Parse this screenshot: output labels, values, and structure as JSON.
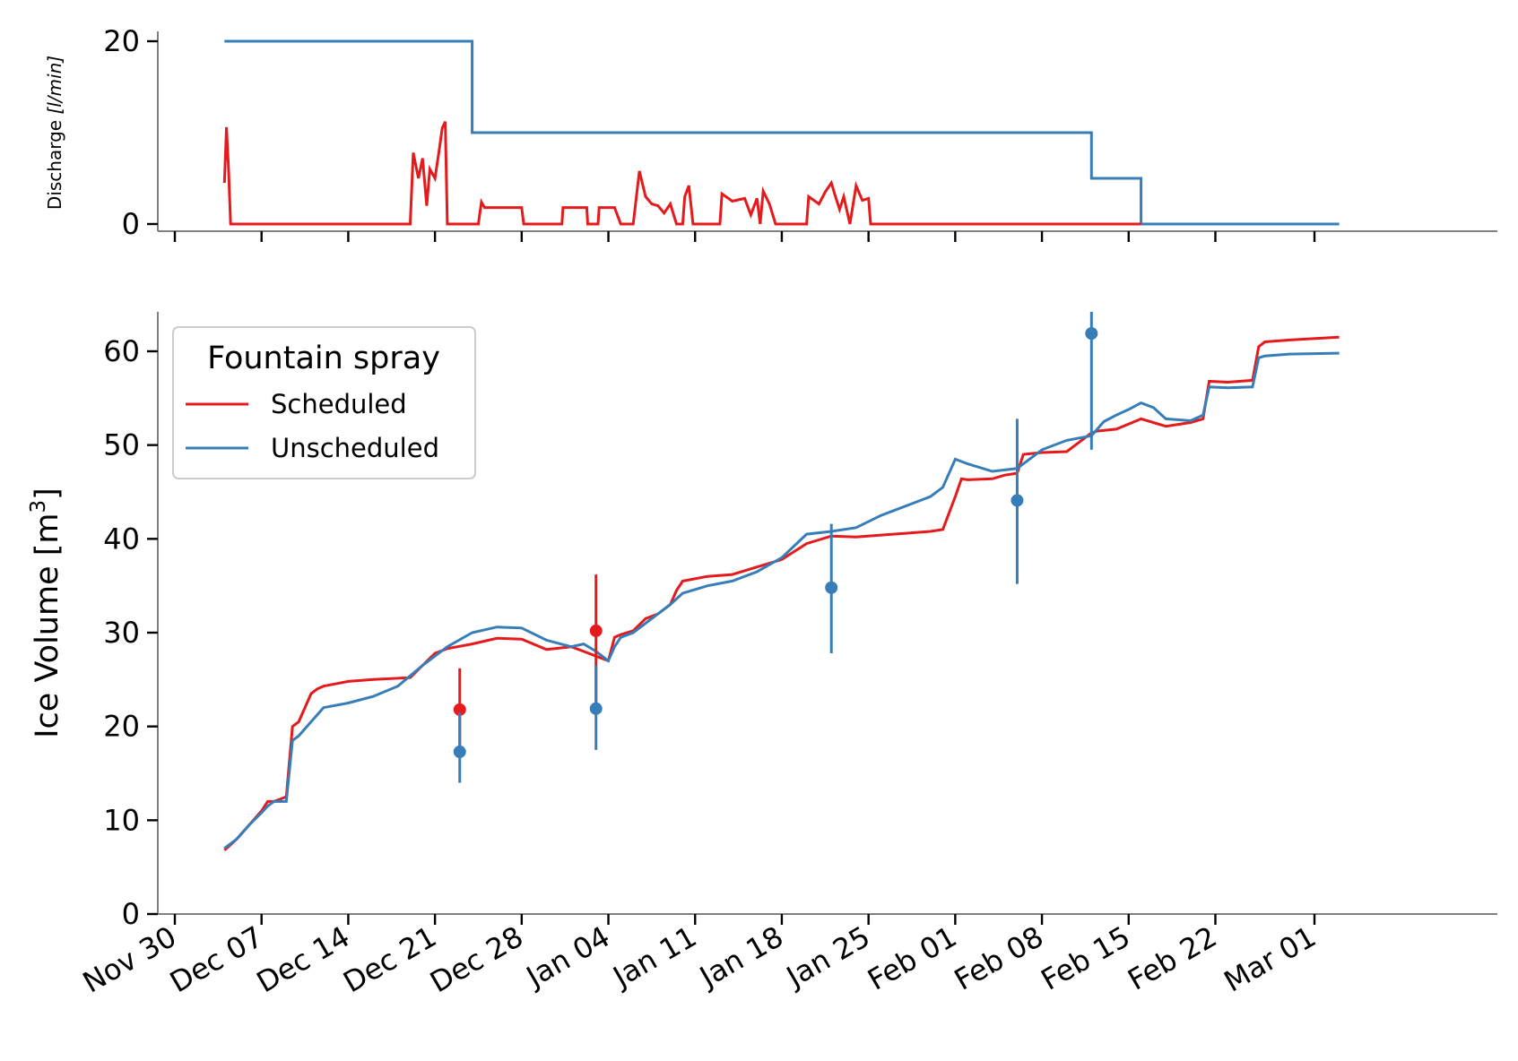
{
  "chart_data": [
    {
      "type": "line",
      "ylabel": "Discharge [l/min]",
      "ylabel_parts": {
        "text": "Discharge ",
        "unit": "[l/min]"
      },
      "ylim": [
        0,
        21
      ],
      "yticks": [
        0,
        20
      ],
      "colors": {
        "Scheduled": "#e41a1c",
        "Unscheduled": "#377eb8"
      },
      "series": [
        {
          "key": "Unscheduled",
          "x": [
            "2019-12-04",
            "2019-12-24",
            "2019-12-24",
            "2020-02-12",
            "2020-02-12",
            "2020-02-16",
            "2020-02-16",
            "2020-03-03"
          ],
          "y": [
            20,
            20,
            10,
            10,
            5,
            5,
            0,
            0
          ]
        },
        {
          "key": "Scheduled",
          "x": [
            "2019-12-04",
            "2019-12-04T04:00",
            "2019-12-04T08:00",
            "2019-12-04T12:00",
            "2019-12-19",
            "2019-12-19T06:00",
            "2019-12-19T16:00",
            "2019-12-20",
            "2019-12-20T08:00",
            "2019-12-20T14:00",
            "2019-12-21",
            "2019-12-21T08:00",
            "2019-12-21T14:00",
            "2019-12-21T20:00",
            "2019-12-22",
            "2019-12-24T12:00",
            "2019-12-24T18:00",
            "2019-12-25",
            "2019-12-28",
            "2019-12-28T04:00",
            "2019-12-31T06:00",
            "2019-12-31T08:00",
            "2020-01-02T06:00",
            "2020-01-02T08:00",
            "2020-01-03T04:00",
            "2020-01-03T06:00",
            "2020-01-04T12:00",
            "2020-01-05",
            "2020-01-06",
            "2020-01-06T12:00",
            "2020-01-07",
            "2020-01-07T12:00",
            "2020-01-08",
            "2020-01-08T12:00",
            "2020-01-09",
            "2020-01-09T12:00",
            "2020-01-10",
            "2020-01-10T04:00",
            "2020-01-10T12:00",
            "2020-01-10T20:00",
            "2020-01-13",
            "2020-01-13T04:00",
            "2020-01-14",
            "2020-01-15",
            "2020-01-15T12:00",
            "2020-01-16",
            "2020-01-16T06:00",
            "2020-01-16T12:00",
            "2020-01-17",
            "2020-01-17T12:00",
            "2020-01-18",
            "2020-01-18T04:00",
            "2020-01-20",
            "2020-01-20T04:00",
            "2020-01-21",
            "2020-01-21T12:00",
            "2020-01-22",
            "2020-01-22T08:00",
            "2020-01-22T16:00",
            "2020-01-23",
            "2020-01-23T12:00",
            "2020-01-24",
            "2020-01-24T12:00",
            "2020-01-25",
            "2020-01-25T04:00",
            "2020-02-16"
          ],
          "y": [
            4.5,
            10.6,
            6,
            0,
            0,
            7.8,
            5,
            7.2,
            2,
            6,
            5,
            8,
            10.5,
            11.2,
            0,
            0,
            2.4,
            1.8,
            1.8,
            0,
            0,
            1.8,
            1.8,
            0,
            0,
            1.8,
            1.8,
            0,
            0,
            5.8,
            3,
            2.2,
            2,
            1.2,
            2.2,
            0,
            0,
            3,
            4.2,
            0,
            0,
            3.3,
            2.5,
            2.8,
            1,
            2.8,
            0,
            3.6,
            2.2,
            0,
            0,
            0,
            0,
            3,
            2.2,
            3.5,
            4.5,
            3,
            1.6,
            3,
            0,
            4.2,
            2.6,
            2.8,
            0,
            0
          ]
        }
      ]
    },
    {
      "type": "line",
      "ylabel": "Ice Volume [m3]",
      "ylabel_parts": {
        "text": "Ice Volume ",
        "base": "[m",
        "sup": "3",
        "close": "]"
      },
      "ylim": [
        0,
        64
      ],
      "yticks": [
        0,
        10,
        20,
        30,
        40,
        50,
        60
      ],
      "legend": {
        "title": "Fountain spray",
        "position": "upper-left",
        "entries": [
          "Scheduled",
          "Unscheduled"
        ]
      },
      "colors": {
        "Scheduled": "#e41a1c",
        "Unscheduled": "#377eb8"
      },
      "xticks": [
        "2019-11-30",
        "2019-12-07",
        "2019-12-14",
        "2019-12-21",
        "2019-12-28",
        "2020-01-04",
        "2020-01-11",
        "2020-01-18",
        "2020-01-25",
        "2020-02-01",
        "2020-02-08",
        "2020-02-15",
        "2020-02-22",
        "2020-03-01"
      ],
      "xtick_labels": [
        "Nov 30",
        "Dec 07",
        "Dec 14",
        "Dec 21",
        "Dec 28",
        "Jan 04",
        "Jan 11",
        "Jan 18",
        "Jan 25",
        "Feb 01",
        "Feb 08",
        "Feb 15",
        "Feb 22",
        "Mar 01"
      ],
      "series": [
        {
          "key": "Scheduled",
          "x": [
            "2019-12-04",
            "2019-12-05",
            "2019-12-06",
            "2019-12-07",
            "2019-12-07T12:00",
            "2019-12-08",
            "2019-12-09",
            "2019-12-09T12:00",
            "2019-12-10",
            "2019-12-11",
            "2019-12-11T12:00",
            "2019-12-12",
            "2019-12-14",
            "2019-12-16",
            "2019-12-19",
            "2019-12-20",
            "2019-12-21",
            "2019-12-22",
            "2019-12-24",
            "2019-12-26",
            "2019-12-28",
            "2019-12-30",
            "2020-01-01",
            "2020-01-02",
            "2020-01-03",
            "2020-01-04",
            "2020-01-04T12:00",
            "2020-01-05",
            "2020-01-06",
            "2020-01-07",
            "2020-01-08",
            "2020-01-09",
            "2020-01-09T12:00",
            "2020-01-10",
            "2020-01-12",
            "2020-01-14",
            "2020-01-16",
            "2020-01-18",
            "2020-01-20",
            "2020-01-22",
            "2020-01-24",
            "2020-01-26",
            "2020-01-28",
            "2020-01-30",
            "2020-01-31",
            "2020-02-01",
            "2020-02-01T12:00",
            "2020-02-02",
            "2020-02-04",
            "2020-02-05",
            "2020-02-06",
            "2020-02-06T12:00",
            "2020-02-08",
            "2020-02-10",
            "2020-02-12",
            "2020-02-12T12:00",
            "2020-02-14",
            "2020-02-16",
            "2020-02-18",
            "2020-02-20",
            "2020-02-21",
            "2020-02-21T12:00",
            "2020-02-23",
            "2020-02-25",
            "2020-02-25T12:00",
            "2020-02-26",
            "2020-02-28",
            "2020-03-03"
          ],
          "y": [
            6.8,
            8,
            9.5,
            11,
            12,
            12,
            12.5,
            20,
            20.5,
            23.5,
            24,
            24.3,
            24.8,
            25,
            25.2,
            26.5,
            27.8,
            28.3,
            28.8,
            29.4,
            29.3,
            28.2,
            28.5,
            28,
            27.5,
            27,
            29.5,
            29.8,
            30.2,
            31.5,
            32,
            33,
            34.5,
            35.5,
            36,
            36.2,
            37,
            37.8,
            39.5,
            40.3,
            40.2,
            40.4,
            40.6,
            40.8,
            41,
            44.5,
            46.4,
            46.3,
            46.4,
            46.8,
            47,
            49,
            49.2,
            49.3,
            51.3,
            51.5,
            51.7,
            52.8,
            52,
            52.4,
            52.8,
            56.8,
            56.7,
            56.9,
            60.5,
            61,
            61.2,
            61.5
          ]
        },
        {
          "key": "Unscheduled",
          "x": [
            "2019-12-04",
            "2019-12-05",
            "2019-12-06",
            "2019-12-07",
            "2019-12-07T12:00",
            "2019-12-08",
            "2019-12-09",
            "2019-12-09T12:00",
            "2019-12-10",
            "2019-12-11",
            "2019-12-12",
            "2019-12-14",
            "2019-12-16",
            "2019-12-18",
            "2019-12-20",
            "2019-12-22",
            "2019-12-24",
            "2019-12-26",
            "2019-12-28",
            "2019-12-30",
            "2020-01-01",
            "2020-01-02",
            "2020-01-03",
            "2020-01-04",
            "2020-01-04T12:00",
            "2020-01-05",
            "2020-01-06",
            "2020-01-07",
            "2020-01-08",
            "2020-01-09",
            "2020-01-10",
            "2020-01-12",
            "2020-01-14",
            "2020-01-16",
            "2020-01-18",
            "2020-01-20",
            "2020-01-22",
            "2020-01-24",
            "2020-01-26",
            "2020-01-28",
            "2020-01-30",
            "2020-01-31",
            "2020-02-01",
            "2020-02-02",
            "2020-02-04",
            "2020-02-06",
            "2020-02-08",
            "2020-02-10",
            "2020-02-12",
            "2020-02-13",
            "2020-02-14",
            "2020-02-15",
            "2020-02-16",
            "2020-02-17",
            "2020-02-18",
            "2020-02-20",
            "2020-02-21",
            "2020-02-21T12:00",
            "2020-02-23",
            "2020-02-25",
            "2020-02-25T12:00",
            "2020-02-26",
            "2020-02-28",
            "2020-03-03"
          ],
          "y": [
            7,
            8,
            9.5,
            10.8,
            11.5,
            12,
            12,
            18.5,
            19,
            20.5,
            22,
            22.5,
            23.2,
            24.3,
            26.5,
            28.5,
            30,
            30.6,
            30.5,
            29.2,
            28.5,
            28.8,
            28,
            27,
            28.5,
            29.5,
            30,
            31,
            32,
            33,
            34.2,
            35,
            35.5,
            36.5,
            38,
            40.5,
            40.8,
            41.2,
            42.5,
            43.5,
            44.5,
            45.5,
            48.5,
            48,
            47.2,
            47.5,
            49.5,
            50.5,
            51,
            52.5,
            53.2,
            53.8,
            54.5,
            54,
            52.8,
            52.6,
            53.2,
            56.2,
            56.1,
            56.2,
            59.3,
            59.5,
            59.7,
            59.8
          ]
        }
      ],
      "measurements": [
        {
          "key": "Scheduled",
          "x": "2019-12-23",
          "y": 21.8,
          "low": 17.2,
          "high": 26.2
        },
        {
          "key": "Unscheduled",
          "x": "2019-12-23",
          "y": 17.3,
          "low": 14.0,
          "high": 21.5
        },
        {
          "key": "Scheduled",
          "x": "2020-01-03",
          "y": 30.2,
          "low": 22.0,
          "high": 36.2
        },
        {
          "key": "Unscheduled",
          "x": "2020-01-03",
          "y": 21.9,
          "low": 17.5,
          "high": 26.5
        },
        {
          "key": "Unscheduled",
          "x": "2020-01-22",
          "y": 34.8,
          "low": 27.8,
          "high": 41.6
        },
        {
          "key": "Unscheduled",
          "x": "2020-02-06",
          "y": 44.1,
          "low": 35.2,
          "high": 52.8
        },
        {
          "key": "Unscheduled",
          "x": "2020-02-12",
          "y": 61.9,
          "low": 49.5,
          "high": 64.2
        }
      ]
    }
  ]
}
